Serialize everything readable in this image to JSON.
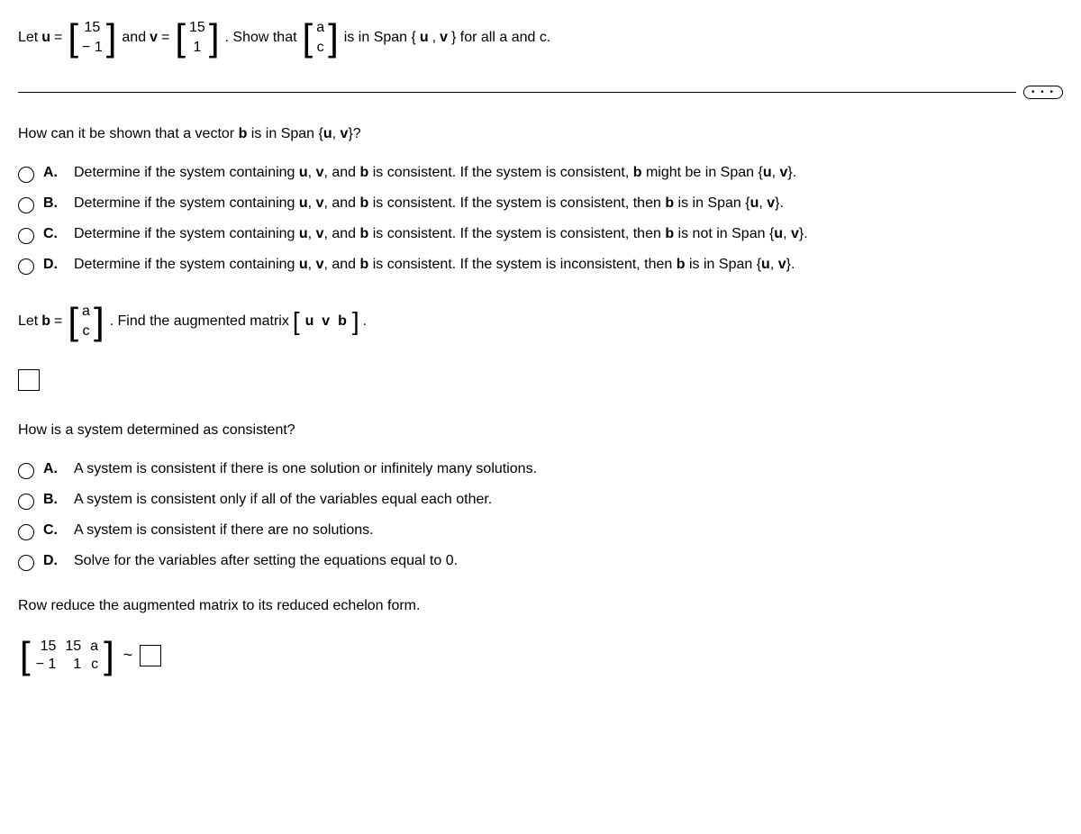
{
  "problem": {
    "let_u": "Let ",
    "u_label": "u",
    "equals": " = ",
    "u_vec": [
      "15",
      "− 1"
    ],
    "and_v": " and ",
    "v_label": "v",
    "v_vec": [
      "15",
      "1"
    ],
    "show_that": ". Show that ",
    "ac_vec": [
      "a",
      "c"
    ],
    "rest": " is in Span {",
    "u2": "u",
    "comma": ", ",
    "v2": "v",
    "end": "} for all a and c."
  },
  "ellipsis": "• • •",
  "q1": {
    "text_pre": "How can it be shown that a vector ",
    "b": "b",
    "text_mid": " is in Span {",
    "u": "u",
    "v": "v",
    "text_end": "}?",
    "options": {
      "A": {
        "pre": "Determine if the system containing ",
        "mid1": ", and ",
        "mid2": " is consistent. If the system is consistent, ",
        "mid3": " might be in Span {",
        "end": "}."
      },
      "B": {
        "pre": "Determine if the system containing ",
        "mid1": ", and ",
        "mid2": " is consistent. If the system is consistent, then ",
        "mid3": " is in Span {",
        "end": "}."
      },
      "C": {
        "pre": "Determine if the system containing ",
        "mid1": ", and ",
        "mid2": " is consistent. If the system is consistent, then ",
        "mid3": " is not in Span {",
        "end": "}."
      },
      "D": {
        "pre": "Determine if the system containing ",
        "mid1": ", and ",
        "mid2": " is consistent. If the system is inconsistent, then ",
        "mid3": " is in Span {",
        "end": "}."
      }
    }
  },
  "letb": {
    "pre": "Let ",
    "b": "b",
    "eq": " = ",
    "vec": [
      "a",
      "c"
    ],
    "mid": ". Find the augmented matrix ",
    "uvb": [
      "u",
      "v",
      "b"
    ],
    "end": "."
  },
  "q2": {
    "text": "How is a system determined as consistent?",
    "options": {
      "A": "A system is consistent if there is one solution or infinitely many solutions.",
      "B": "A system is consistent only if all of the variables equal each other.",
      "C": "A system is consistent if there are no solutions.",
      "D": "Solve for the variables after setting the equations equal to 0."
    }
  },
  "rowreduce": {
    "text": "Row reduce the augmented matrix to its reduced echelon form.",
    "matrix": [
      "15",
      "15",
      "a",
      "− 1",
      "1",
      "c"
    ]
  },
  "labels": {
    "A": "A.",
    "B": "B.",
    "C": "C.",
    "D": "D."
  }
}
